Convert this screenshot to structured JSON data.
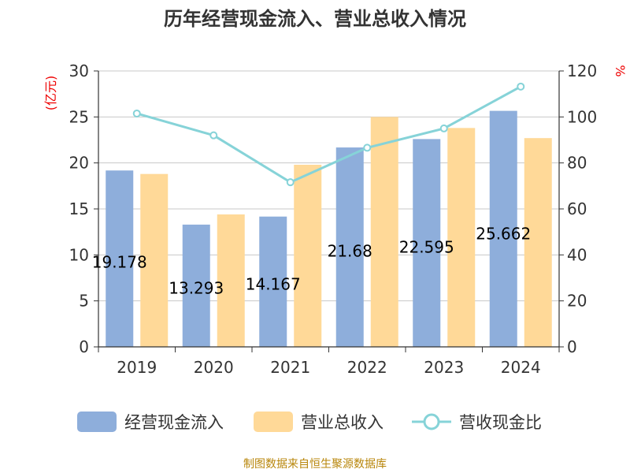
{
  "chart_data": {
    "type": "bar",
    "title": "历年经营现金流入、营业总收入情况",
    "categories": [
      "2019",
      "2020",
      "2021",
      "2022",
      "2023",
      "2024"
    ],
    "series": [
      {
        "name": "经营现金流入",
        "type": "bar",
        "axis": "left",
        "color": "#8eaedb",
        "values": [
          19.178,
          13.293,
          14.167,
          21.68,
          22.595,
          25.662
        ],
        "data_labels": [
          "19.178",
          "13.293",
          "14.167",
          "21.68",
          "22.595",
          "25.662"
        ]
      },
      {
        "name": "营业总收入",
        "type": "bar",
        "axis": "left",
        "color": "#ffd998",
        "values": [
          18.8,
          14.4,
          19.8,
          25.0,
          23.8,
          22.7
        ]
      },
      {
        "name": "营收现金比",
        "type": "line",
        "axis": "right",
        "color": "#86d3d8",
        "values": [
          101.5,
          92.0,
          71.6,
          86.6,
          95.0,
          113.2
        ]
      }
    ],
    "y_left": {
      "unit": "(亿元)",
      "min": 0,
      "max": 30,
      "step": 5
    },
    "y_right": {
      "unit": "%",
      "min": 0,
      "max": 120,
      "step": 20
    },
    "grid": true,
    "legend_position": "bottom"
  },
  "source": "制图数据来自恒生聚源数据库"
}
